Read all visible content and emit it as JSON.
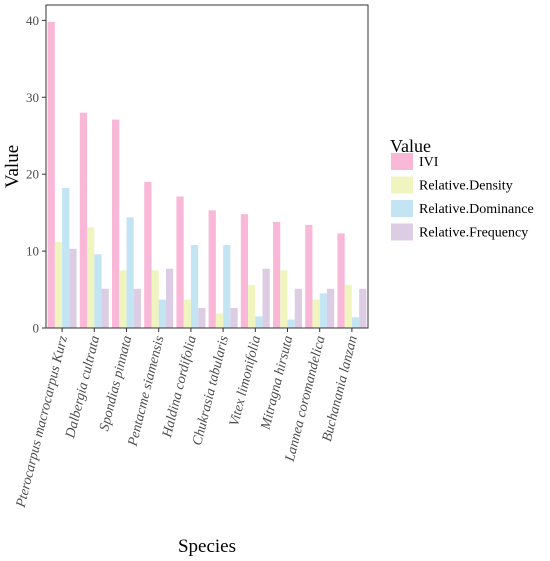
{
  "chart_data": {
    "type": "bar",
    "xlabel": "Species",
    "ylabel": "Value",
    "ylim": [
      0,
      42
    ],
    "yticks": [
      0,
      10,
      20,
      30,
      40
    ],
    "grid": false,
    "legend_title": "Value",
    "legend_position": "right",
    "categories": [
      "Pterocarpus macrocarpus Kurz",
      "Dalbergia cultrata",
      "Spondias pinnata",
      "Pentacme siamensis",
      "Haldina cordifolia",
      "Chukrasia tabularis",
      "Vitex limonifolia",
      "Mitragna hirsuta",
      "Lannea coromandelica",
      "Buchanania lanzan"
    ],
    "series": [
      {
        "name": "IVI",
        "color": "#f9b8d8",
        "values": [
          39.8,
          28.0,
          27.1,
          19.0,
          17.1,
          15.3,
          14.8,
          13.8,
          13.4,
          12.3
        ]
      },
      {
        "name": "Relative.Density",
        "color": "#f0f5c0",
        "values": [
          11.2,
          13.1,
          7.5,
          7.5,
          3.7,
          1.9,
          5.6,
          7.5,
          3.7,
          5.6
        ]
      },
      {
        "name": "Relative.Dominance",
        "color": "#c3e5f3",
        "values": [
          18.2,
          9.6,
          14.4,
          3.7,
          10.8,
          10.8,
          1.5,
          1.1,
          4.5,
          1.4
        ]
      },
      {
        "name": "Relative.Frequency",
        "color": "#dccde4",
        "values": [
          10.3,
          5.1,
          5.1,
          7.7,
          2.6,
          2.6,
          7.7,
          5.1,
          5.1,
          5.1
        ]
      }
    ]
  }
}
